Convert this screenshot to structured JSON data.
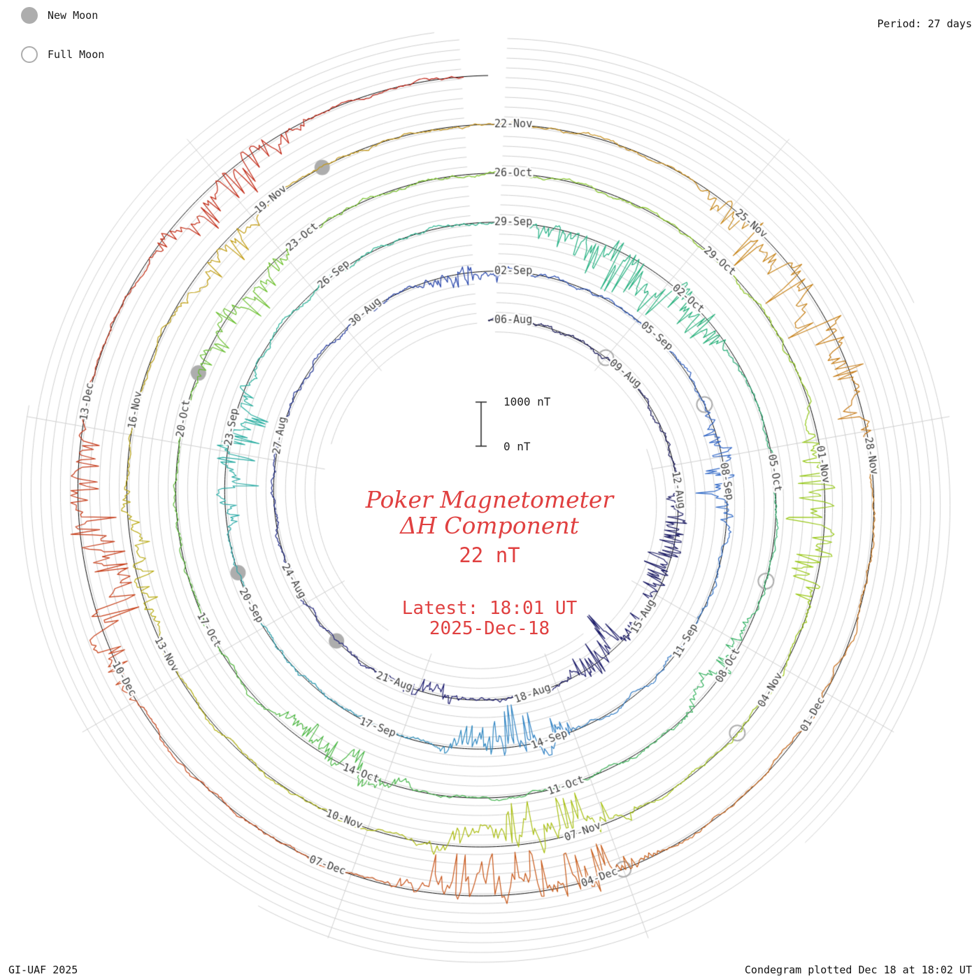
{
  "legend": {
    "new_moon_label": "New Moon",
    "full_moon_label": "Full Moon"
  },
  "header": {
    "period_label": "Period: 27 days"
  },
  "footer": {
    "left": "GI-UAF 2025",
    "right": "Condegram plotted Dec 18 at 18:02 UT"
  },
  "center": {
    "title_line1": "Poker Magnetometer",
    "title_line2": "ΔH Component",
    "range_label": "22 nT",
    "latest_line1": "Latest: 18:01 UT",
    "latest_line2": "2025-Dec-18"
  },
  "scale_bar": {
    "top_label": "1000 nT",
    "bottom_label": "0 nT",
    "span_nt": 1000
  },
  "chart_data": {
    "type": "condegram-spiral",
    "station": "Poker",
    "component": "ΔH",
    "period_days": 27,
    "start_date": "2025-08-06",
    "end_day": 134.75,
    "labels_every_days": 3,
    "date_labels": [
      {
        "label": "06-Aug",
        "day": 0
      },
      {
        "label": "09-Aug",
        "day": 3
      },
      {
        "label": "12-Aug",
        "day": 6
      },
      {
        "label": "15-Aug",
        "day": 9
      },
      {
        "label": "18-Aug",
        "day": 12
      },
      {
        "label": "21-Aug",
        "day": 15
      },
      {
        "label": "24-Aug",
        "day": 18
      },
      {
        "label": "27-Aug",
        "day": 21
      },
      {
        "label": "30-Aug",
        "day": 24
      },
      {
        "label": "02-Sep",
        "day": 27
      },
      {
        "label": "05-Sep",
        "day": 30
      },
      {
        "label": "08-Sep",
        "day": 33
      },
      {
        "label": "11-Sep",
        "day": 36
      },
      {
        "label": "14-Sep",
        "day": 39
      },
      {
        "label": "17-Sep",
        "day": 42
      },
      {
        "label": "20-Sep",
        "day": 45
      },
      {
        "label": "23-Sep",
        "day": 48
      },
      {
        "label": "26-Sep",
        "day": 51
      },
      {
        "label": "29-Sep",
        "day": 54
      },
      {
        "label": "02-Oct",
        "day": 57
      },
      {
        "label": "05-Oct",
        "day": 60
      },
      {
        "label": "08-Oct",
        "day": 63
      },
      {
        "label": "11-Oct",
        "day": 66
      },
      {
        "label": "14-Oct",
        "day": 69
      },
      {
        "label": "17-Oct",
        "day": 72
      },
      {
        "label": "20-Oct",
        "day": 75
      },
      {
        "label": "23-Oct",
        "day": 78
      },
      {
        "label": "26-Oct",
        "day": 81
      },
      {
        "label": "29-Oct",
        "day": 84
      },
      {
        "label": "01-Nov",
        "day": 87
      },
      {
        "label": "04-Nov",
        "day": 90
      },
      {
        "label": "07-Nov",
        "day": 93
      },
      {
        "label": "10-Nov",
        "day": 96
      },
      {
        "label": "13-Nov",
        "day": 99
      },
      {
        "label": "16-Nov",
        "day": 102
      },
      {
        "label": "19-Nov",
        "day": 105
      },
      {
        "label": "22-Nov",
        "day": 108
      },
      {
        "label": "25-Nov",
        "day": 111
      },
      {
        "label": "28-Nov",
        "day": 114
      },
      {
        "label": "01-Dec",
        "day": 117
      },
      {
        "label": "04-Dec",
        "day": 120
      },
      {
        "label": "07-Dec",
        "day": 123
      },
      {
        "label": "10-Dec",
        "day": 126
      },
      {
        "label": "13-Dec",
        "day": 129
      }
    ],
    "new_moon_days": [
      17,
      46,
      76,
      106
    ],
    "full_moon_days": [
      3,
      32,
      62,
      91,
      120
    ],
    "color_stops": [
      {
        "day": 0,
        "color": "#141450"
      },
      {
        "day": 16,
        "color": "#1c1c72"
      },
      {
        "day": 26,
        "color": "#2340a8"
      },
      {
        "day": 33,
        "color": "#2e64c6"
      },
      {
        "day": 40,
        "color": "#3184c4"
      },
      {
        "day": 45,
        "color": "#2ba4ae"
      },
      {
        "day": 51,
        "color": "#26b496"
      },
      {
        "day": 59,
        "color": "#28b077"
      },
      {
        "day": 67,
        "color": "#40b451"
      },
      {
        "day": 75,
        "color": "#60bc32"
      },
      {
        "day": 83,
        "color": "#85c61e"
      },
      {
        "day": 91,
        "color": "#a2c814"
      },
      {
        "day": 99,
        "color": "#b5ae10"
      },
      {
        "day": 106,
        "color": "#c49814"
      },
      {
        "day": 113,
        "color": "#c67d16"
      },
      {
        "day": 119,
        "color": "#c76017"
      },
      {
        "day": 125,
        "color": "#c8481a"
      },
      {
        "day": 131,
        "color": "#c22d15"
      },
      {
        "day": 135,
        "color": "#bf1a0f"
      }
    ],
    "storms": [
      {
        "day": 6.5,
        "duration": 3.0,
        "amplitude": 26
      },
      {
        "day": 9.4,
        "duration": 2.4,
        "amplitude": 34
      },
      {
        "day": 14.0,
        "duration": 1.5,
        "amplitude": 14
      },
      {
        "day": 25.5,
        "duration": 2.0,
        "amplitude": 16
      },
      {
        "day": 32.0,
        "duration": 2.5,
        "amplitude": 24
      },
      {
        "day": 38.8,
        "duration": 2.6,
        "amplitude": 44
      },
      {
        "day": 46.5,
        "duration": 3.0,
        "amplitude": 30
      },
      {
        "day": 54.5,
        "duration": 4.0,
        "amplitude": 48
      },
      {
        "day": 62.5,
        "duration": 2.0,
        "amplitude": 20
      },
      {
        "day": 68.5,
        "duration": 2.5,
        "amplitude": 22
      },
      {
        "day": 75.8,
        "duration": 2.5,
        "amplitude": 26
      },
      {
        "day": 86.5,
        "duration": 3.0,
        "amplitude": 38
      },
      {
        "day": 92.5,
        "duration": 3.0,
        "amplitude": 46
      },
      {
        "day": 99.5,
        "duration": 2.0,
        "amplitude": 18
      },
      {
        "day": 103.5,
        "duration": 2.0,
        "amplitude": 22
      },
      {
        "day": 110.5,
        "duration": 3.8,
        "amplitude": 52
      },
      {
        "day": 119.5,
        "duration": 3.2,
        "amplitude": 50
      },
      {
        "day": 125.8,
        "duration": 3.4,
        "amplitude": 46
      },
      {
        "day": 130.8,
        "duration": 2.4,
        "amplitude": 30
      }
    ],
    "synthesis": {
      "seed": 1218,
      "samples_per_day": 40,
      "quiet_amplitude": 3.2
    },
    "colors": {
      "background": "#ffffff",
      "grid": "#cfcfcf",
      "spoke": "#cfcfcf",
      "baseline": "#000000",
      "label": "#3c3c3c",
      "moon": "#adadad",
      "accent_red": "#e04040",
      "text": "#1a1a1a"
    }
  }
}
